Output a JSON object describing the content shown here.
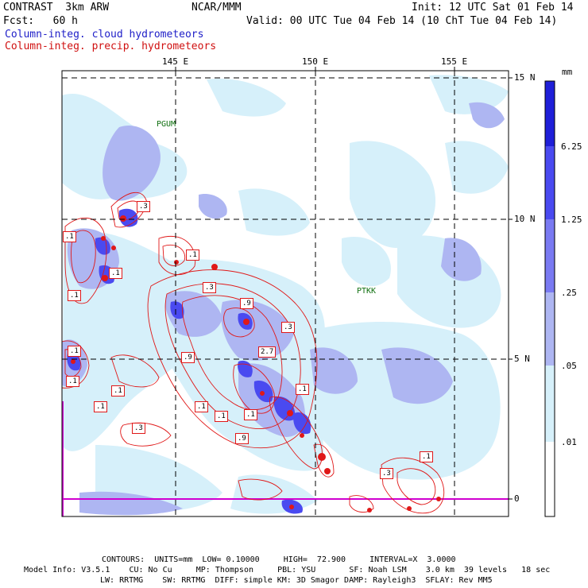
{
  "header": {
    "model_line": "CONTRAST  3km ARW",
    "org": "NCAR/MMM",
    "init": "Init: 12 UTC Sat 01 Feb 14",
    "fcst": "Fcst:   60 h",
    "valid": "Valid: 00 UTC Tue 04 Feb 14 (10 ChT Tue 04 Feb 14)",
    "legend_cloud": "Column-integ. cloud hydrometeors",
    "legend_precip": "Column-integ. precip. hydrometeors"
  },
  "map": {
    "lon_ticks": [
      "145 E",
      "150 E",
      "155 E"
    ],
    "lat_ticks": [
      "15 N",
      "10 N",
      "5 N",
      "0"
    ],
    "stations": [
      "PGUM",
      "PTKK"
    ],
    "contour_labels": [
      ".3",
      ".1",
      ".1",
      ".1",
      ".1",
      ".3",
      ".1",
      ".9",
      ".3",
      ".9",
      "2.7",
      ".1",
      ".1",
      ".9",
      ".1",
      ".1",
      ".3",
      ".1",
      ".1",
      ".3",
      ".1",
      ".1"
    ]
  },
  "colorbar": {
    "unit": "mm",
    "levels": [
      "6.25",
      "1.25",
      ".25",
      ".05",
      ".01"
    ],
    "colors": [
      "#1f1fd8",
      "#4a4af0",
      "#7a7af2",
      "#aeb6f2",
      "#d6f0fa",
      "#ffffff"
    ]
  },
  "footer": {
    "contours": "CONTOURS:  UNITS=mm  LOW= 0.10000     HIGH=  72.900     INTERVAL=X  3.0000",
    "model_info_1": "Model Info: V3.5.1    CU: No Cu     MP: Thompson     PBL: YSU       SF: Noah LSM    3.0 km  39 levels   18 sec",
    "model_info_2": "LW: RRTMG    SW: RRTMG  DIFF: simple KM: 3D Smagor DAMP: Rayleigh3  SFLAY: Rev MM5"
  },
  "colors": {
    "cloud_legend": "#2020c8",
    "precip_legend": "#d01010",
    "contour": "#e01818",
    "station": "#107010",
    "equator_line": "#d000d0"
  }
}
